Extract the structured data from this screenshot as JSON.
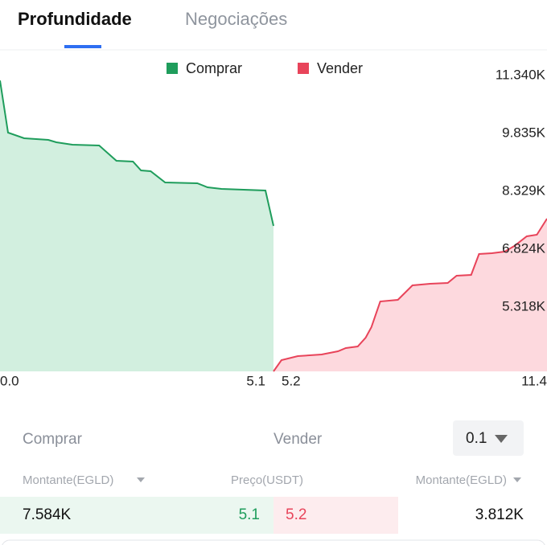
{
  "tabs": {
    "active": "Profundidade",
    "other": "Negociações"
  },
  "chart_data": {
    "type": "depth",
    "ylim": [
      3645,
      12010
    ],
    "yticks": [
      {
        "value": 11340,
        "label": "11.340K"
      },
      {
        "value": 9835,
        "label": "9.835K"
      },
      {
        "value": 8329,
        "label": "8.329K"
      },
      {
        "value": 6824,
        "label": "6.824K"
      },
      {
        "value": 5318,
        "label": "5.318K"
      }
    ],
    "legend": "top",
    "series": [
      {
        "name": "Comprar",
        "color": "#1f9d5c",
        "fill": "#d2efdf",
        "xlim": [
          0,
          5.1
        ],
        "xticks": [
          {
            "value": 0,
            "label": "0.0"
          },
          5.1
        ],
        "x": [
          0,
          0.15,
          0.45,
          0.9,
          1.05,
          1.35,
          1.85,
          2.17,
          2.48,
          2.63,
          2.81,
          3.08,
          3.68,
          3.87,
          4.13,
          4.95,
          5.1
        ],
        "values": [
          11214,
          9855,
          9709,
          9667,
          9605,
          9542,
          9521,
          9124,
          9103,
          8873,
          8852,
          8559,
          8538,
          8433,
          8392,
          8350,
          7430
        ]
      },
      {
        "name": "Vender",
        "color": "#e8445a",
        "fill": "#fdd9de",
        "xlim": [
          5.2,
          11.4
        ],
        "xticks": [
          5.2,
          11.4
        ],
        "x": [
          5.2,
          5.38,
          5.75,
          6.29,
          6.66,
          6.84,
          7.11,
          7.29,
          7.42,
          7.62,
          8.02,
          8.35,
          8.75,
          9.15,
          9.35,
          9.68,
          9.86,
          10.15,
          10.44,
          10.66,
          10.94,
          11.17,
          11.4
        ],
        "values": [
          3645,
          3938,
          4042,
          4084,
          4168,
          4251,
          4293,
          4523,
          4795,
          5464,
          5506,
          5882,
          5924,
          5945,
          6133,
          6154,
          6698,
          6719,
          6761,
          6907,
          7158,
          7200,
          7618
        ]
      }
    ]
  },
  "order_book": {
    "buy_label": "Comprar",
    "sell_label": "Vender",
    "precision": "0.1",
    "headers": [
      "Montante(EGLD)",
      "Preço(USDT)",
      "Montante(EGLD)"
    ],
    "rows": [
      [
        "7.584K",
        "5.1",
        "5.2",
        "3.812K"
      ]
    ]
  }
}
